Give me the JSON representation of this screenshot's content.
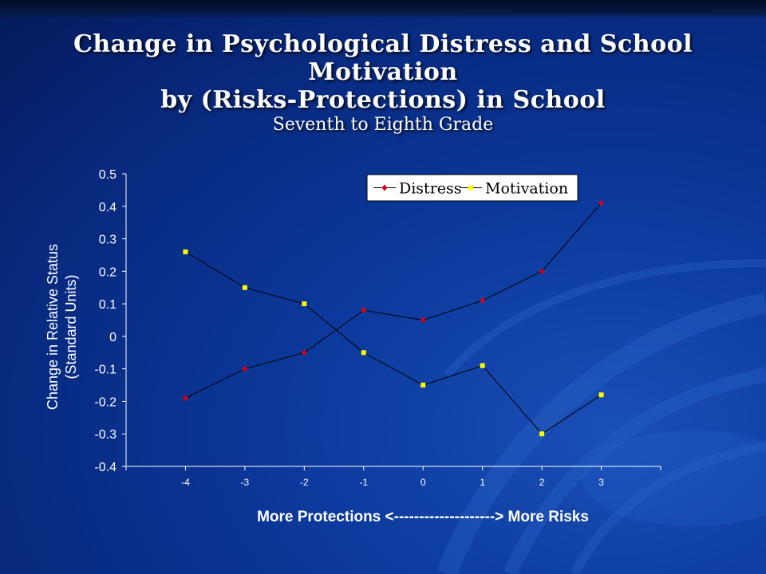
{
  "slide": {
    "title_line1": "Change in Psychological Distress and School",
    "title_line2": "Motivation",
    "title_line3": "by (Risks-Protections) in School",
    "subtitle": "Seventh to Eighth Grade"
  },
  "chart_data": {
    "type": "line",
    "ylabel_line1": "Change in Relative Status",
    "ylabel_line2": "(Standard Units)",
    "xlabel": "More Protections <--------------------> More Risks",
    "x": [
      -4,
      -3,
      -2,
      -1,
      0,
      1,
      2,
      3
    ],
    "x_tick_labels": [
      "-4",
      "-3",
      "-2",
      "-1",
      "0",
      "1",
      "2",
      "3"
    ],
    "ylim": [
      -0.4,
      0.5
    ],
    "y_tick_labels": [
      "0.5",
      "0.4",
      "0.3",
      "0.2",
      "0.1",
      "0",
      "-0.1",
      "-0.2",
      "-0.3",
      "-0.4"
    ],
    "grid": false,
    "legend_position": "top-right",
    "series": [
      {
        "name": "Distress",
        "color": "#d0021b",
        "marker": "diamond",
        "values": [
          -0.19,
          -0.1,
          -0.05,
          0.08,
          0.05,
          0.11,
          0.2,
          0.41
        ]
      },
      {
        "name": "Motivation",
        "color": "#ffff00",
        "marker": "square",
        "values": [
          0.26,
          0.15,
          0.1,
          -0.05,
          -0.15,
          -0.09,
          -0.3,
          -0.18
        ]
      }
    ]
  }
}
